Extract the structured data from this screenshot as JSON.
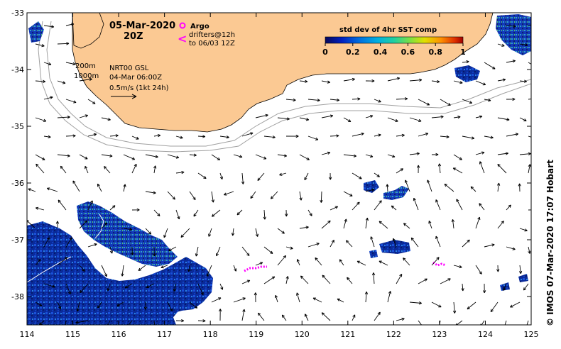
{
  "title": {
    "date": "05-Mar-2020",
    "time": "20Z"
  },
  "legend": {
    "argo_label": "Argo",
    "drifters_label": "drifters@12h",
    "drifters_to": "to 06/03 12Z",
    "argo_color": "#ff00ff",
    "drifter_color": "#ff00ff"
  },
  "colorbar": {
    "title": "std dev of 4hr SST comp",
    "ticks": [
      "0",
      "0.2",
      "0.4",
      "0.6",
      "0.8",
      "1"
    ],
    "range": [
      0,
      1
    ],
    "colors": [
      "#08085a",
      "#0020c0",
      "#0070e0",
      "#00b0e0",
      "#20d0a0",
      "#80e040",
      "#e0e000",
      "#ff9000",
      "#e03000",
      "#a00000"
    ]
  },
  "annotations": {
    "depth_200": "200m",
    "depth_1000": "1000m",
    "product": "NRT00 GSL",
    "product_time": "04-Mar 06:00Z",
    "scale_label": "0.5m/s (1kt 24h)"
  },
  "credit": "© IMOS 07-Mar-2020 17:07 Hobart",
  "axes": {
    "x_ticks": [
      "114",
      "115",
      "116",
      "117",
      "118",
      "119",
      "120",
      "121",
      "122",
      "123",
      "124",
      "125"
    ],
    "y_ticks": [
      "-33",
      "-34",
      "-35",
      "-36",
      "-37",
      "-38"
    ],
    "lon_range": [
      114,
      125
    ],
    "lat_range": [
      -38.5,
      -33
    ]
  },
  "colors": {
    "land": "#fbc993",
    "isobath": "#a0a0a0",
    "sst_dark": "#08208a",
    "sst_mid": "#1040d0",
    "sst_light": "#3080e0"
  }
}
